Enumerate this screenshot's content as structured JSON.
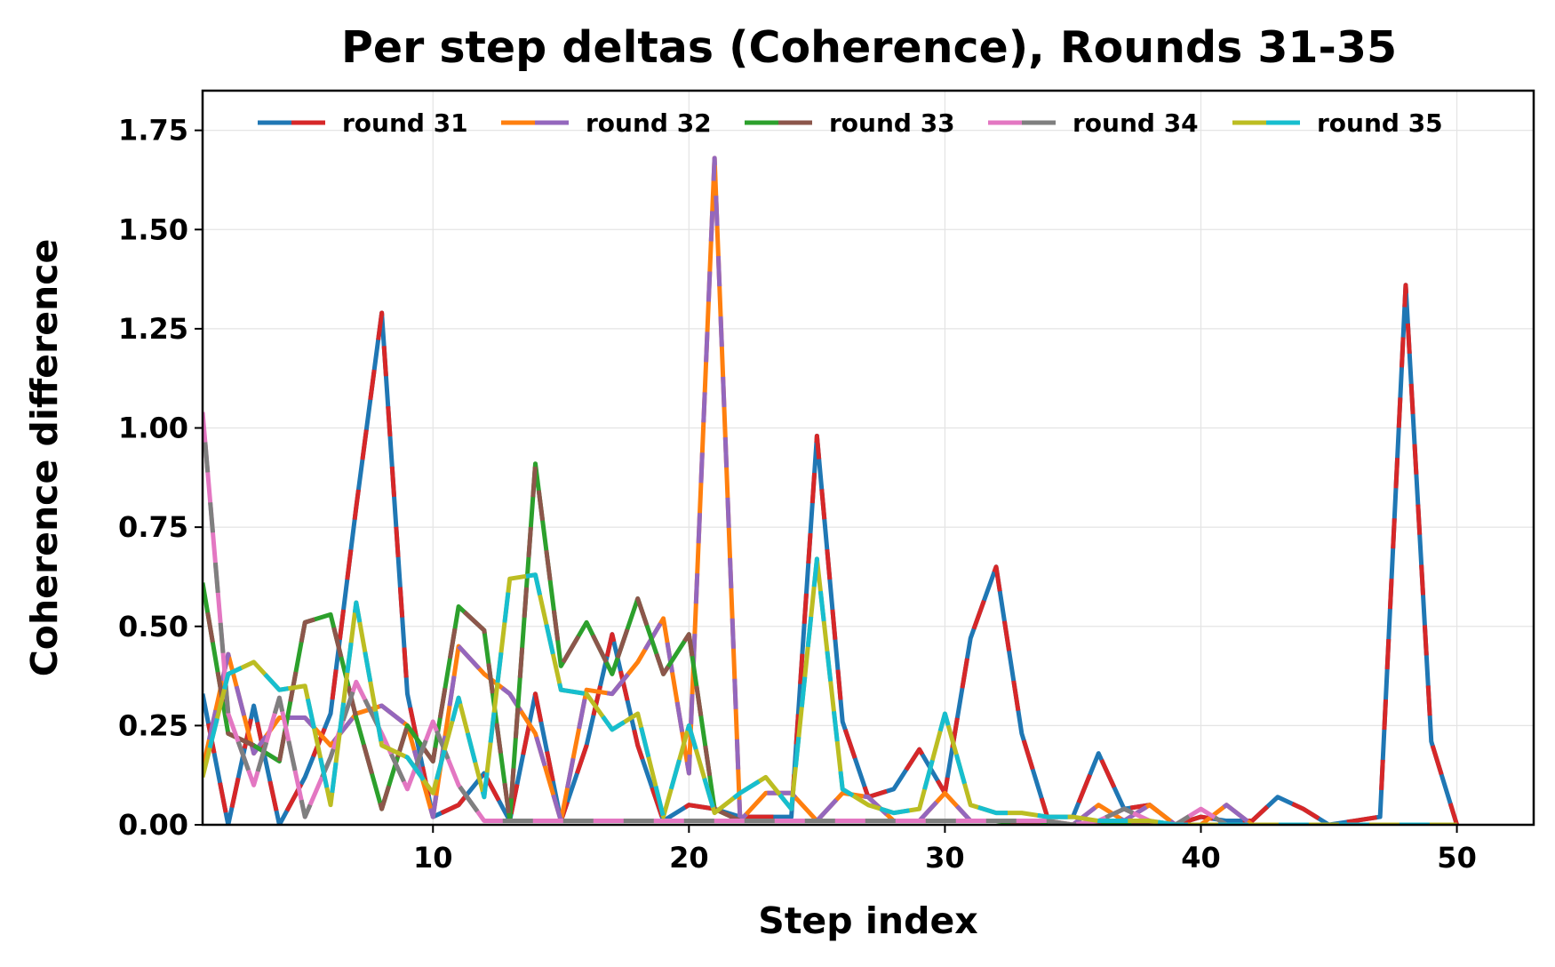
{
  "chart_data": {
    "type": "line",
    "title": "Per step deltas (Coherence), Rounds 31-35",
    "xlabel": "Step index",
    "ylabel": "Coherence difference",
    "xlim": [
      1,
      53
    ],
    "ylim": [
      0,
      1.85
    ],
    "grid": true,
    "legend_position": "top",
    "x_ticks": [
      10,
      20,
      30,
      40,
      50
    ],
    "x_tick_labels": [
      "10",
      "20",
      "30",
      "40",
      "50"
    ],
    "y_ticks": [
      0,
      0.25,
      0.5,
      0.75,
      1.0,
      1.25,
      1.5,
      1.75
    ],
    "y_tick_labels": [
      "0.00",
      "0.25",
      "0.50",
      "0.75",
      "1.00",
      "1.25",
      "1.50",
      "1.75"
    ],
    "x": [
      1,
      2,
      3,
      4,
      5,
      6,
      7,
      8,
      9,
      10,
      11,
      12,
      13,
      14,
      15,
      16,
      17,
      18,
      19,
      20,
      21,
      22,
      23,
      24,
      25,
      26,
      27,
      28,
      29,
      30,
      31,
      32,
      33,
      34,
      35,
      36,
      37,
      38,
      39,
      40,
      41,
      42,
      43,
      44,
      45,
      46,
      47,
      48,
      49,
      50
    ],
    "legend": [
      {
        "label": "round 31",
        "colors": [
          "#1f77b4",
          "#d62728"
        ]
      },
      {
        "label": "round 32",
        "colors": [
          "#ff7f0e",
          "#9467bd"
        ]
      },
      {
        "label": "round 33",
        "colors": [
          "#2ca02c",
          "#8c564b"
        ]
      },
      {
        "label": "round 34",
        "colors": [
          "#e377c2",
          "#7f7f7f"
        ]
      },
      {
        "label": "round 35",
        "colors": [
          "#bcbd22",
          "#17becf"
        ]
      }
    ],
    "series": [
      {
        "round": "round 31",
        "color": "#1f77b4",
        "alt_color": "#d62728",
        "values": [
          0.33,
          0.0,
          0.3,
          0.0,
          0.12,
          0.28,
          0.8,
          1.29,
          0.33,
          0.02,
          0.05,
          0.13,
          0.01,
          0.33,
          0.01,
          0.2,
          0.48,
          0.2,
          0.01,
          0.05,
          0.04,
          0.02,
          0.02,
          0.02,
          0.98,
          0.26,
          0.07,
          0.09,
          0.19,
          0.08,
          0.47,
          0.65,
          0.23,
          0.02,
          0.02,
          0.18,
          0.04,
          0.05,
          0.0,
          0.02,
          0.01,
          0.01,
          0.07,
          0.04,
          0.0,
          0.01,
          0.02,
          1.36,
          0.21,
          0.0
        ]
      },
      {
        "round": "round 32",
        "color": "#ff7f0e",
        "alt_color": "#9467bd",
        "values": [
          0.14,
          0.43,
          0.18,
          0.27,
          0.27,
          0.2,
          0.28,
          0.3,
          0.25,
          0.02,
          0.45,
          0.38,
          0.33,
          0.23,
          0.01,
          0.34,
          0.33,
          0.41,
          0.52,
          0.13,
          1.68,
          0.01,
          0.08,
          0.08,
          0.01,
          0.08,
          0.07,
          0.01,
          0.01,
          0.08,
          0.01,
          0.01,
          0.01,
          0.01,
          0.0,
          0.05,
          0.01,
          0.05,
          0.0,
          0.0,
          0.05,
          0.0,
          0.0,
          0.0,
          0.0,
          0.0,
          0.0,
          0.0,
          0.0,
          0.0
        ]
      },
      {
        "round": "round 33",
        "color": "#2ca02c",
        "alt_color": "#8c564b",
        "values": [
          0.61,
          0.23,
          0.2,
          0.16,
          0.51,
          0.53,
          0.27,
          0.04,
          0.25,
          0.16,
          0.55,
          0.49,
          0.01,
          0.91,
          0.4,
          0.51,
          0.38,
          0.57,
          0.38,
          0.48,
          0.04,
          0.01,
          0.01,
          0.01,
          0.01,
          0.01,
          0.01,
          0.01,
          0.01,
          0.01,
          0.01,
          0.01,
          0.0,
          0.0,
          0.0,
          0.0,
          0.0,
          0.0,
          0.0,
          0.0,
          0.0,
          0.0,
          0.0,
          0.0,
          0.0,
          0.0,
          0.0,
          0.0,
          0.0,
          0.0
        ]
      },
      {
        "round": "round 34",
        "color": "#e377c2",
        "alt_color": "#7f7f7f",
        "values": [
          1.04,
          0.28,
          0.1,
          0.32,
          0.02,
          0.17,
          0.36,
          0.23,
          0.09,
          0.26,
          0.1,
          0.01,
          0.01,
          0.01,
          0.01,
          0.01,
          0.01,
          0.01,
          0.01,
          0.01,
          0.01,
          0.01,
          0.01,
          0.01,
          0.01,
          0.01,
          0.01,
          0.01,
          0.01,
          0.01,
          0.01,
          0.01,
          0.01,
          0.01,
          0.0,
          0.01,
          0.04,
          0.01,
          0.0,
          0.04,
          0.0,
          0.0,
          0.0,
          0.0,
          0.0,
          0.0,
          0.0,
          0.0,
          0.0,
          0.0
        ]
      },
      {
        "round": "round 35",
        "color": "#bcbd22",
        "alt_color": "#17becf",
        "values": [
          0.12,
          0.38,
          0.41,
          0.34,
          0.35,
          0.05,
          0.56,
          0.2,
          0.17,
          0.08,
          0.32,
          0.07,
          0.62,
          0.63,
          0.34,
          0.33,
          0.24,
          0.28,
          0.02,
          0.25,
          0.03,
          0.08,
          0.12,
          0.04,
          0.67,
          0.09,
          0.05,
          0.03,
          0.04,
          0.28,
          0.05,
          0.03,
          0.03,
          0.02,
          0.02,
          0.01,
          0.01,
          0.01,
          0.0,
          0.0,
          0.0,
          0.0,
          0.0,
          0.0,
          0.0,
          0.0,
          0.0,
          0.0,
          0.0,
          0.0
        ]
      }
    ]
  }
}
